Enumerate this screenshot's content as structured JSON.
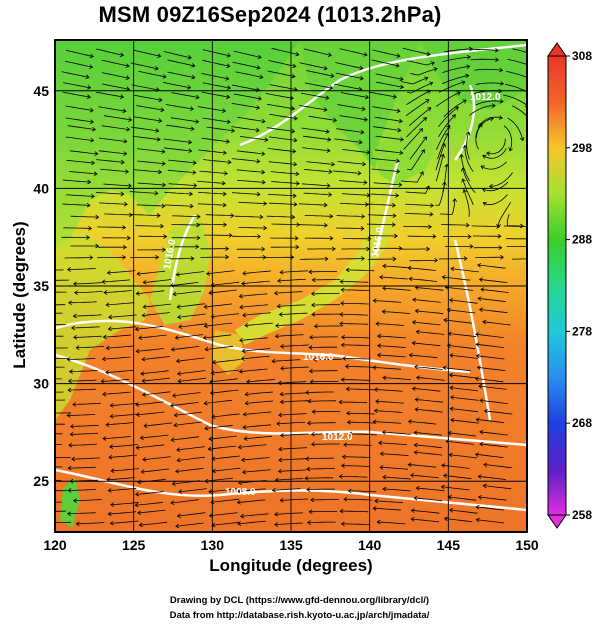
{
  "title": "MSM 09Z16Sep2024 (1013.2hPa)",
  "x_axis": {
    "label": "Longitude (degrees)",
    "ticks": [
      "120",
      "125",
      "130",
      "135",
      "140",
      "145",
      "150"
    ],
    "range": [
      120,
      150
    ]
  },
  "y_axis": {
    "label": "Latitude  (degrees)",
    "ticks": [
      "25",
      "30",
      "35",
      "40",
      "45"
    ],
    "range": [
      22.4,
      47.6
    ]
  },
  "colorbar": {
    "ticks": [
      "308",
      "298",
      "288",
      "278",
      "268",
      "258"
    ],
    "range": [
      258,
      308
    ],
    "colors_top_to_bottom": [
      "#e8372a",
      "#f2642a",
      "#f59a2a",
      "#f6c62a",
      "#e6e830",
      "#a6e030",
      "#3ccd2a",
      "#27d88a",
      "#22c8d8",
      "#2a8ef0",
      "#2040e0",
      "#2a1ec8",
      "#7e22c8",
      "#e02ee0"
    ]
  },
  "isobar_labels": [
    "1016.0",
    "1012.0",
    "1016.0",
    "1016.0",
    "1012.0",
    "1008.0"
  ],
  "footer": {
    "line1": "Drawing by DCL (https://www.gfd-dennou.org/library/dcl/)",
    "line2": "Data from http://database.rish.kyoto-u.ac.jp/arch/jmadata/"
  }
}
